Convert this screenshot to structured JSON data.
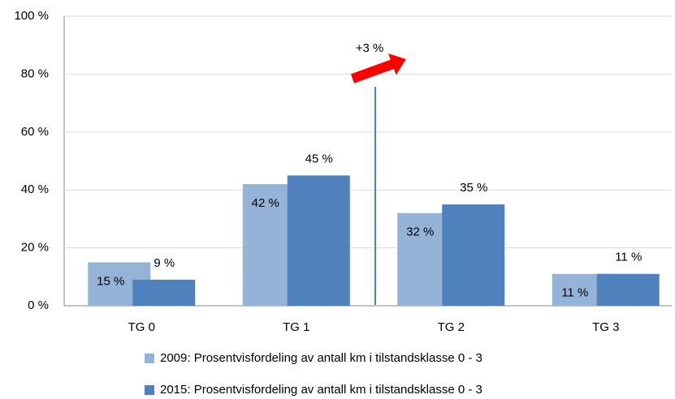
{
  "chart_data": {
    "type": "bar",
    "categories": [
      "TG 0",
      "TG 1",
      "TG 2",
      "TG 3"
    ],
    "series": [
      {
        "name": "2009: Prosentvisfordeling av antall km i tilstandsklasse 0 - 3",
        "color": "#95b3d7",
        "values": [
          15,
          42,
          32,
          11
        ],
        "value_labels": [
          "15 %",
          "42 %",
          "32 %",
          "11 %"
        ]
      },
      {
        "name": "2015: Prosentvisfordeling av antall km i tilstandsklasse 0 - 3",
        "color": "#4f81bd",
        "values": [
          9,
          45,
          35,
          11
        ],
        "value_labels": [
          "9 %",
          "45 %",
          "35 %",
          "11 %"
        ]
      }
    ],
    "ylim": [
      0,
      100
    ],
    "yticks": [
      {
        "value": 0,
        "label": "0 %"
      },
      {
        "value": 20,
        "label": "20 %"
      },
      {
        "value": 40,
        "label": "40 %"
      },
      {
        "value": 60,
        "label": "60 %"
      },
      {
        "value": 80,
        "label": "80 %"
      },
      {
        "value": 100,
        "label": "100 %"
      }
    ],
    "grid": true,
    "annotation": "+3 %",
    "legend": "bottom"
  }
}
